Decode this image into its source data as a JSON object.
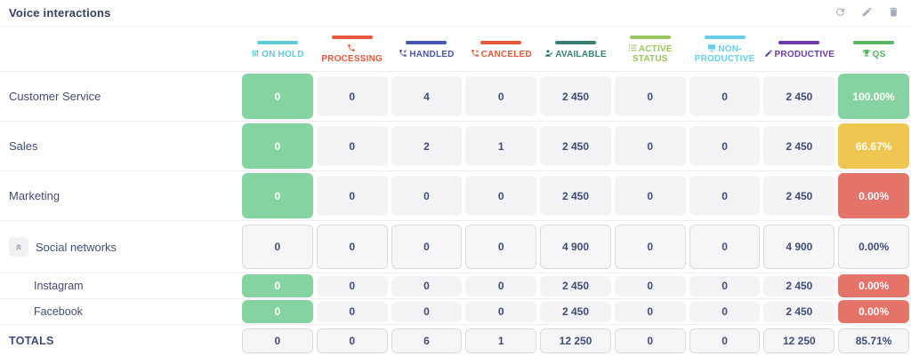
{
  "header": {
    "title": "Voice interactions",
    "actions": [
      {
        "name": "refresh",
        "icon": "refresh-icon"
      },
      {
        "name": "edit",
        "icon": "pencil-icon"
      },
      {
        "name": "delete",
        "icon": "trash-icon"
      }
    ]
  },
  "columns": [
    {
      "key": "on_hold",
      "label": "ON HOLD",
      "color": "#5ecbd7",
      "icon": "sliders-icon"
    },
    {
      "key": "processing",
      "label": "PROCESSING",
      "color": "#e8563d",
      "icon": "phone-icon"
    },
    {
      "key": "handled",
      "label": "HANDLED",
      "color": "#4a55ae",
      "icon": "phone-incoming-icon"
    },
    {
      "key": "canceled",
      "label": "CANCELED",
      "color": "#e8563d",
      "icon": "phone-missed-icon"
    },
    {
      "key": "available",
      "label": "AVAILABLE",
      "color": "#37806f",
      "icon": "user-check-icon"
    },
    {
      "key": "active_status",
      "label": "ACTIVE STATUS",
      "color": "#99c45e",
      "icon": "list-icon"
    },
    {
      "key": "non_productive",
      "label": "NON-PRODUCTIVE",
      "color": "#67cde8",
      "icon": "monitor-icon"
    },
    {
      "key": "productive",
      "label": "PRODUCTIVE",
      "color": "#6d3caa",
      "icon": "pencil-icon"
    },
    {
      "key": "qs",
      "label": "QS",
      "color": "#57b65f",
      "icon": "trophy-icon"
    }
  ],
  "rows": [
    {
      "label": "Customer Service",
      "size": "large",
      "expander": false,
      "cells": [
        {
          "value": "0",
          "variant": "green"
        },
        {
          "value": "0",
          "variant": "plain"
        },
        {
          "value": "4",
          "variant": "plain"
        },
        {
          "value": "0",
          "variant": "plain"
        },
        {
          "value": "2 450",
          "variant": "plain"
        },
        {
          "value": "0",
          "variant": "plain"
        },
        {
          "value": "0",
          "variant": "plain"
        },
        {
          "value": "2 450",
          "variant": "plain"
        },
        {
          "value": "100.00%",
          "variant": "qs-green"
        }
      ]
    },
    {
      "label": "Sales",
      "size": "large",
      "expander": false,
      "cells": [
        {
          "value": "0",
          "variant": "green"
        },
        {
          "value": "0",
          "variant": "plain"
        },
        {
          "value": "2",
          "variant": "plain"
        },
        {
          "value": "1",
          "variant": "plain"
        },
        {
          "value": "2 450",
          "variant": "plain"
        },
        {
          "value": "0",
          "variant": "plain"
        },
        {
          "value": "0",
          "variant": "plain"
        },
        {
          "value": "2 450",
          "variant": "plain"
        },
        {
          "value": "66.67%",
          "variant": "qs-yellow"
        }
      ]
    },
    {
      "label": "Marketing",
      "size": "large",
      "expander": false,
      "cells": [
        {
          "value": "0",
          "variant": "green"
        },
        {
          "value": "0",
          "variant": "plain"
        },
        {
          "value": "0",
          "variant": "plain"
        },
        {
          "value": "0",
          "variant": "plain"
        },
        {
          "value": "2 450",
          "variant": "plain"
        },
        {
          "value": "0",
          "variant": "plain"
        },
        {
          "value": "0",
          "variant": "plain"
        },
        {
          "value": "2 450",
          "variant": "plain"
        },
        {
          "value": "0.00%",
          "variant": "qs-red"
        }
      ]
    },
    {
      "label": "Social networks",
      "size": "group",
      "expander": true,
      "cells": [
        {
          "value": "0",
          "variant": "outline"
        },
        {
          "value": "0",
          "variant": "outline"
        },
        {
          "value": "0",
          "variant": "outline"
        },
        {
          "value": "0",
          "variant": "outline"
        },
        {
          "value": "4 900",
          "variant": "outline"
        },
        {
          "value": "0",
          "variant": "outline"
        },
        {
          "value": "0",
          "variant": "outline"
        },
        {
          "value": "4 900",
          "variant": "outline"
        },
        {
          "value": "0.00%",
          "variant": "outline"
        }
      ]
    },
    {
      "label": "Instagram",
      "size": "small",
      "expander": false,
      "cells": [
        {
          "value": "0",
          "variant": "green"
        },
        {
          "value": "0",
          "variant": "plain"
        },
        {
          "value": "0",
          "variant": "plain"
        },
        {
          "value": "0",
          "variant": "plain"
        },
        {
          "value": "2 450",
          "variant": "plain"
        },
        {
          "value": "0",
          "variant": "plain"
        },
        {
          "value": "0",
          "variant": "plain"
        },
        {
          "value": "2 450",
          "variant": "plain"
        },
        {
          "value": "0.00%",
          "variant": "qs-red"
        }
      ]
    },
    {
      "label": "Facebook",
      "size": "small",
      "expander": false,
      "cells": [
        {
          "value": "0",
          "variant": "green"
        },
        {
          "value": "0",
          "variant": "plain"
        },
        {
          "value": "0",
          "variant": "plain"
        },
        {
          "value": "0",
          "variant": "plain"
        },
        {
          "value": "2 450",
          "variant": "plain"
        },
        {
          "value": "0",
          "variant": "plain"
        },
        {
          "value": "0",
          "variant": "plain"
        },
        {
          "value": "2 450",
          "variant": "plain"
        },
        {
          "value": "0.00%",
          "variant": "qs-red"
        }
      ]
    },
    {
      "label": "TOTALS",
      "size": "totals",
      "expander": false,
      "cells": [
        {
          "value": "0",
          "variant": "outline"
        },
        {
          "value": "0",
          "variant": "outline"
        },
        {
          "value": "6",
          "variant": "outline"
        },
        {
          "value": "1",
          "variant": "outline"
        },
        {
          "value": "12 250",
          "variant": "outline"
        },
        {
          "value": "0",
          "variant": "outline"
        },
        {
          "value": "0",
          "variant": "outline"
        },
        {
          "value": "12 250",
          "variant": "outline"
        },
        {
          "value": "85.71%",
          "variant": "outline"
        }
      ]
    }
  ]
}
